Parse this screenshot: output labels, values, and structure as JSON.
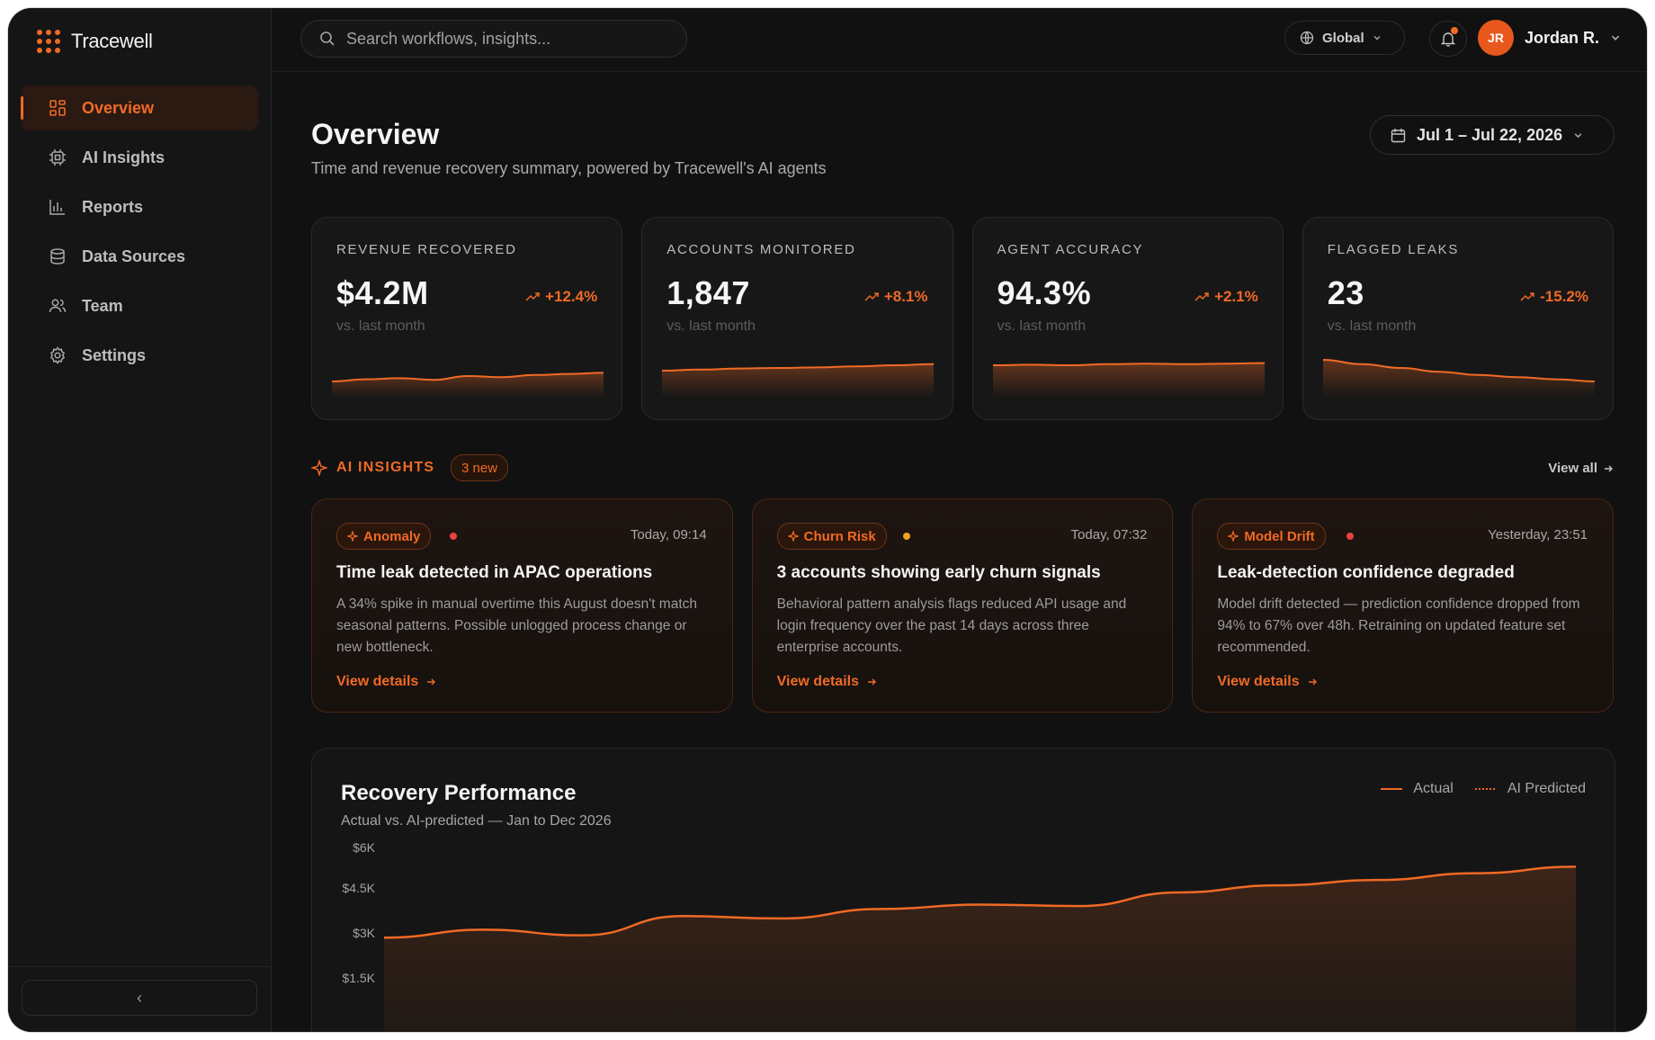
{
  "app": {
    "name": "Tracewell"
  },
  "sidebar": {
    "items": [
      {
        "label": "Overview",
        "icon": "grid-icon",
        "active": true
      },
      {
        "label": "AI Insights",
        "icon": "ai-chip-icon"
      },
      {
        "label": "Reports",
        "icon": "bar-chart-icon"
      },
      {
        "label": "Data Sources",
        "icon": "database-icon"
      },
      {
        "label": "Team",
        "icon": "users-icon"
      },
      {
        "label": "Settings",
        "icon": "gear-icon"
      }
    ],
    "collapse_glyph": "‹"
  },
  "topbar": {
    "search_placeholder": "Search workflows, insights...",
    "region": "Global",
    "user_initials": "JR",
    "user_name": "Jordan R."
  },
  "page": {
    "title": "Overview",
    "subtitle": "Time and revenue recovery summary, powered by Tracewell's AI agents",
    "date_range": "Jul 1 – Jul 22, 2026"
  },
  "kpis": [
    {
      "label": "REVENUE RECOVERED",
      "value": "$4.2M",
      "delta": "+12.4%",
      "comparison": "vs. last month",
      "trend": [
        0.3,
        0.34,
        0.36,
        0.33,
        0.4,
        0.38,
        0.42,
        0.44,
        0.46
      ]
    },
    {
      "label": "ACCOUNTS MONITORED",
      "value": "1,847",
      "delta": "+8.1%",
      "comparison": "vs. last month",
      "trend": [
        0.5,
        0.52,
        0.54,
        0.55,
        0.56,
        0.58,
        0.6,
        0.62
      ]
    },
    {
      "label": "AGENT ACCURACY",
      "value": "94.3%",
      "delta": "+2.1%",
      "comparison": "vs. last month",
      "trend": [
        0.6,
        0.61,
        0.6,
        0.62,
        0.63,
        0.62,
        0.63,
        0.64
      ]
    },
    {
      "label": "FLAGGED LEAKS",
      "value": "23",
      "delta": "-15.2%",
      "comparison": "vs. last month",
      "trend": [
        0.7,
        0.62,
        0.55,
        0.48,
        0.42,
        0.38,
        0.34,
        0.3
      ]
    }
  ],
  "insights": {
    "title": "AI INSIGHTS",
    "badge": "3 new",
    "view_all": "View all",
    "cards": [
      {
        "tag": "Anomaly",
        "dot_color": "#e8453c",
        "time": "Today, 09:14",
        "title": "Time leak detected in APAC operations",
        "body": "A 34% spike in manual overtime this August doesn't match seasonal patterns. Possible unlogged process change or new bottleneck.",
        "link": "View details"
      },
      {
        "tag": "Churn Risk",
        "dot_color": "#f0a21c",
        "time": "Today, 07:32",
        "title": "3 accounts showing early churn signals",
        "body": "Behavioral pattern analysis flags reduced API usage and login frequency over the past 14 days across three enterprise accounts.",
        "link": "View details"
      },
      {
        "tag": "Model Drift",
        "dot_color": "#e8453c",
        "time": "Yesterday, 23:51",
        "title": "Leak-detection confidence degraded",
        "body": "Model drift detected — prediction confidence dropped from 94% to 67% over 48h. Retraining on updated feature set recommended.",
        "link": "View details"
      }
    ]
  },
  "performance": {
    "title": "Recovery Performance",
    "subtitle": "Actual vs. AI-predicted — Jan to Dec 2026",
    "legend_actual": "Actual",
    "legend_predicted": "AI Predicted"
  },
  "colors": {
    "accent": "#f06a26",
    "background": "#111111",
    "card": "#171717"
  },
  "chart_data": {
    "type": "line",
    "title": "Recovery Performance",
    "subtitle": "Actual vs. AI-predicted — Jan to Dec 2026",
    "y_ticks": [
      "$6K",
      "$4.5K",
      "$3K",
      "$1.5K"
    ],
    "y_tick_values": [
      6000,
      4500,
      3000,
      1500
    ],
    "ylim": [
      1500,
      6000
    ],
    "series": [
      {
        "name": "Actual",
        "x": [
          0,
          1,
          2,
          3,
          4,
          5,
          6,
          7,
          8,
          9,
          10,
          11,
          12
        ],
        "values": [
          2950,
          3220,
          3030,
          3680,
          3600,
          3920,
          4070,
          4020,
          4480,
          4720,
          4900,
          5130,
          5350
        ]
      }
    ],
    "legend": [
      "Actual",
      "AI Predicted"
    ],
    "grid": false
  }
}
